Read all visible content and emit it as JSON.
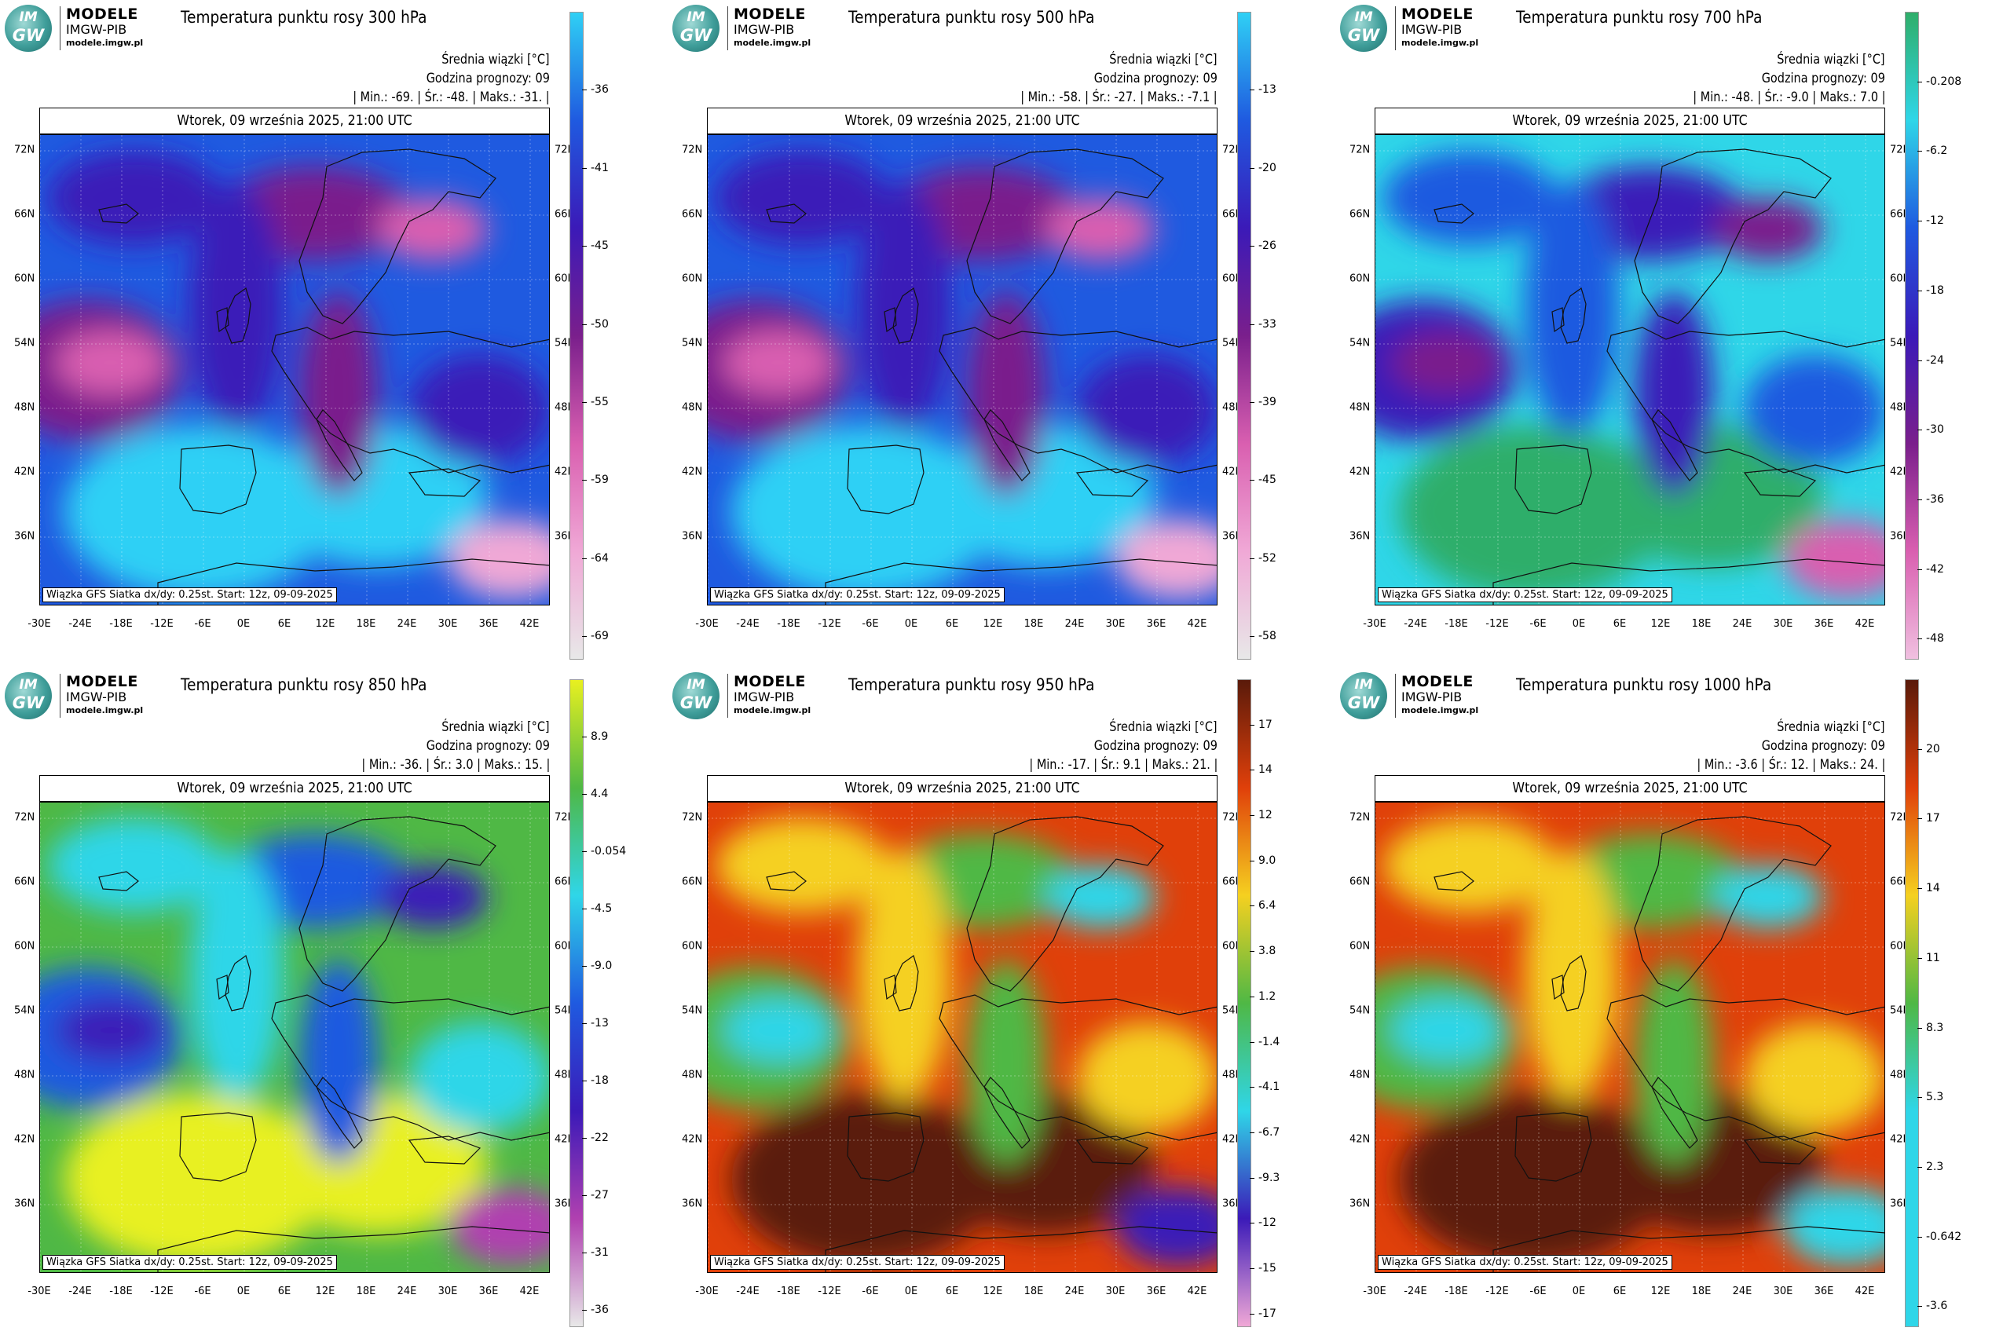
{
  "logo": {
    "badge_line1": "IM",
    "badge_line2": "GW",
    "line1": "MODELE",
    "line2": "IMGW-PIB",
    "line3": "modele.imgw.pl"
  },
  "common": {
    "mean_label": "Średnia wiązki [°C]",
    "forecast_hour": "Godzina prognozy: 09",
    "date_line": "Wtorek, 09 września 2025, 21:00 UTC",
    "source": "Wiązka GFS Siatka dx/dy: 0.25st. Start: 12z, 09-09-2025",
    "lat_labels": [
      "72N",
      "66N",
      "60N",
      "54N",
      "48N",
      "42N",
      "36N"
    ],
    "lon_labels": [
      "-30E",
      "-24E",
      "-18E",
      "-12E",
      "-6E",
      "0E",
      "6E",
      "12E",
      "18E",
      "24E",
      "30E",
      "36E",
      "42E"
    ]
  },
  "panels": [
    {
      "title": "Temperatura punktu rosy 300 hPa",
      "stats": "| Min.:   -69. | Śr.:   -48. | Maks.:   -31. |",
      "ticks": [
        "-36",
        "-41",
        "-45",
        "-50",
        "-55",
        "-59",
        "-64",
        "-69"
      ],
      "colors": {
        "c1": "#2fd0f5",
        "c2": "#1f5ae0",
        "c3": "#3b1ab8",
        "c4": "#7a1f8c",
        "c5": "#d95fb0",
        "c6": "#f0a8d6",
        "c7": "#e8e8e8"
      }
    },
    {
      "title": "Temperatura punktu rosy 500 hPa",
      "stats": "| Min.:   -58. | Śr.:   -27. | Maks.:   -7.1 |",
      "ticks": [
        "-13",
        "-20",
        "-26",
        "-33",
        "-39",
        "-45",
        "-52",
        "-58"
      ],
      "colors": {
        "c1": "#2fd0f5",
        "c2": "#1f5ae0",
        "c3": "#3b1ab8",
        "c4": "#7a1f8c",
        "c5": "#d95fb0",
        "c6": "#f0a8d6",
        "c7": "#e8e8e8"
      }
    },
    {
      "title": "Temperatura punktu rosy 700 hPa",
      "stats": "| Min.:   -48. | Śr.:   -9.0 | Maks.:   7.0 |",
      "ticks": [
        "-0.208",
        "-6.2",
        "-12",
        "-18",
        "-24",
        "-30",
        "-36",
        "-42",
        "-48"
      ],
      "colors": {
        "c1": "#2fae6a",
        "c2": "#2fd6e8",
        "c3": "#1f5ae0",
        "c4": "#3b1ab8",
        "c5": "#7a1f8c",
        "c6": "#d95fb0",
        "c7": "#f0c0e0"
      }
    },
    {
      "title": "Temperatura punktu rosy 850 hPa",
      "stats": "| Min.:   -36. | Śr.:   3.0 | Maks.:   15. |",
      "ticks": [
        "8.9",
        "4.4",
        "-0.054",
        "-4.5",
        "-9.0",
        "-13",
        "-18",
        "-22",
        "-27",
        "-31",
        "-36"
      ],
      "colors": {
        "c1": "#e8f020",
        "c2": "#4fb845",
        "c3": "#2fd6e8",
        "c4": "#1f5ae0",
        "c5": "#3b1ab8",
        "c6": "#b040b0",
        "c7": "#e8e8e8"
      }
    },
    {
      "title": "Temperatura punktu rosy 950 hPa",
      "stats": "| Min.:   -17. | Śr.:   9.1 | Maks.:   21. |",
      "ticks": [
        "17",
        "14",
        "12",
        "9.0",
        "6.4",
        "3.8",
        "1.2",
        "-1.4",
        "-4.1",
        "-6.7",
        "-9.3",
        "-12",
        "-15",
        "-17"
      ],
      "colors": {
        "c1": "#5a1a0a",
        "c2": "#e0400a",
        "c3": "#f5d020",
        "c4": "#4fb845",
        "c5": "#2fd6e8",
        "c6": "#3b1ab8",
        "c7": "#f0a8d6"
      }
    },
    {
      "title": "Temperatura punktu rosy 1000 hPa",
      "stats": "| Min.:   -3.6 | Śr.:   12. | Maks.:   24. |",
      "ticks": [
        "20",
        "17",
        "14",
        "11",
        "8.3",
        "5.3",
        "2.3",
        "-0.642",
        "-3.6"
      ],
      "colors": {
        "c1": "#5a1a0a",
        "c2": "#e0400a",
        "c3": "#f5d020",
        "c4": "#4fb845",
        "c5": "#2fd6e8",
        "c6": "#2fd6e8",
        "c7": "#2fd6e8"
      }
    }
  ]
}
